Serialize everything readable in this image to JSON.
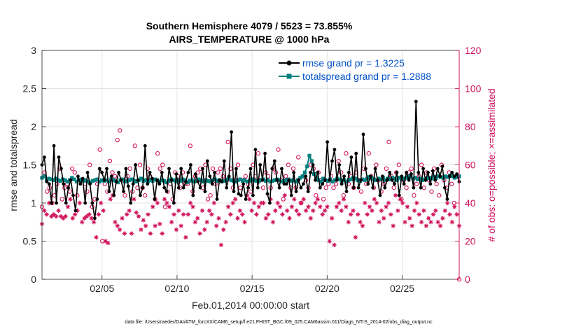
{
  "chart_data": {
    "type": "line",
    "title_line1": "Southern Hemisphere 4079 / 5523 = 73.855%",
    "title_line2": "AIRS_TEMPERATURE @ 1000 hPa",
    "xlabel": "Feb.01,2014 00:00:00 start",
    "ylabel_left": "rmse and totalspread",
    "ylabel_right": "# of obs: o=possible; ×=assimilated",
    "xlim": [
      1,
      28.8
    ],
    "ylim_left": [
      0,
      3
    ],
    "ylim_right": [
      0,
      120
    ],
    "xticks": [
      {
        "value": 5,
        "label": "02/05"
      },
      {
        "value": 10,
        "label": "02/10"
      },
      {
        "value": 15,
        "label": "02/15"
      },
      {
        "value": 20,
        "label": "02/20"
      },
      {
        "value": 25,
        "label": "02/25"
      }
    ],
    "yticks_left": [
      "0",
      "0.5",
      "1",
      "1.5",
      "2",
      "2.5",
      "3"
    ],
    "yticks_right": [
      "0",
      "20",
      "40",
      "60",
      "80",
      "100",
      "120"
    ],
    "legend": {
      "position": "top-right",
      "entries": [
        "rmse grand pr = 1.3225",
        "totalspread grand pr = 1.2888"
      ]
    },
    "colors": {
      "rmse": "#000000",
      "totalspread": "#008080",
      "obs": "#d0105a",
      "legend_text": "#0050c8"
    },
    "series": [
      {
        "name": "rmse",
        "values": [
          1.5,
          1.6,
          1.28,
          1.25,
          1.0,
          1.75,
          1.0,
          1.6,
          1.45,
          1.25,
          1.0,
          1.2,
          1.3,
          1.1,
          0.9,
          1.35,
          1.25,
          1.32,
          1.0,
          1.4,
          1.25,
          1.0,
          0.8,
          1.05,
          1.45,
          1.4,
          1.3,
          1.45,
          1.15,
          1.35,
          1.1,
          1.28,
          1.4,
          1.3,
          1.15,
          1.45,
          1.22,
          1.0,
          1.25,
          1.5,
          1.3,
          1.1,
          1.2,
          1.75,
          1.25,
          1.4,
          1.32,
          1.05,
          1.3,
          1.25,
          1.4,
          1.2,
          1.15,
          1.45,
          1.3,
          1.0,
          1.38,
          1.2,
          1.45,
          1.2,
          1.28,
          1.4,
          1.5,
          1.1,
          1.38,
          1.28,
          1.2,
          1.45,
          1.15,
          1.55,
          1.35,
          1.25,
          1.4,
          1.05,
          1.3,
          1.28,
          1.55,
          1.2,
          1.35,
          1.93,
          1.15,
          1.45,
          1.12,
          1.1,
          1.25,
          1.05,
          1.2,
          1.45,
          1.1,
          1.7,
          1.2,
          1.5,
          1.3,
          1.65,
          1.12,
          1.0,
          1.45,
          1.55,
          1.3,
          1.2,
          1.45,
          1.25,
          1.25,
          1.3,
          1.1,
          1.4,
          1.15,
          1.3,
          1.2,
          1.25,
          1.35,
          1.15,
          1.4,
          1.5,
          1.3,
          1.4,
          1.2,
          1.25,
          1.3,
          1.8,
          1.3,
          1.55,
          1.7,
          1.3,
          1.5,
          1.25,
          1.35,
          1.15,
          1.4,
          1.6,
          1.2,
          1.65,
          1.2,
          1.3,
          1.9,
          1.45,
          1.25,
          1.35,
          1.2,
          1.45,
          1.3,
          1.1,
          1.35,
          1.2,
          1.3,
          1.4,
          1.3,
          1.25,
          1.4,
          1.1,
          1.35,
          1.25,
          1.4,
          1.3,
          1.38,
          1.2,
          2.33,
          1.4,
          1.2,
          1.45,
          1.3,
          1.4,
          1.25,
          1.42,
          1.3,
          1.45,
          1.35,
          1.48,
          1.2,
          1.05,
          1.35,
          1.4,
          1.35,
          1.38,
          1.28
        ]
      },
      {
        "name": "totalspread",
        "values": [
          1.33,
          1.35,
          1.3,
          1.32,
          1.31,
          1.3,
          1.32,
          1.3,
          1.29,
          1.31,
          1.3,
          1.28,
          1.3,
          1.33,
          1.31,
          1.28,
          1.3,
          1.31,
          1.29,
          1.3,
          1.28,
          1.27,
          1.29,
          1.3,
          1.31,
          1.28,
          1.3,
          1.29,
          1.3,
          1.28,
          1.31,
          1.3,
          1.29,
          1.27,
          1.3,
          1.31,
          1.28,
          1.29,
          1.3,
          1.31,
          1.29,
          1.28,
          1.3,
          1.32,
          1.29,
          1.3,
          1.28,
          1.3,
          1.29,
          1.31,
          1.3,
          1.28,
          1.3,
          1.29,
          1.27,
          1.29,
          1.31,
          1.3,
          1.28,
          1.3,
          1.29,
          1.31,
          1.3,
          1.27,
          1.29,
          1.3,
          1.28,
          1.29,
          1.31,
          1.3,
          1.28,
          1.3,
          1.29,
          1.28,
          1.3,
          1.31,
          1.29,
          1.3,
          1.28,
          1.29,
          1.3,
          1.32,
          1.3,
          1.29,
          1.28,
          1.3,
          1.31,
          1.29,
          1.3,
          1.28,
          1.29,
          1.31,
          1.3,
          1.29,
          1.28,
          1.3,
          1.31,
          1.29,
          1.3,
          1.28,
          1.29,
          1.3,
          1.31,
          1.3,
          1.28,
          1.29,
          1.3,
          1.31,
          1.29,
          1.3,
          1.28,
          1.3,
          1.33,
          1.35,
          1.4,
          1.48,
          1.62,
          1.55,
          1.38,
          1.33,
          1.3,
          1.28,
          1.32,
          1.3,
          1.29,
          1.31,
          1.28,
          1.3,
          1.32,
          1.31,
          1.29,
          1.3,
          1.28,
          1.3,
          1.31,
          1.33,
          1.32,
          1.3,
          1.29,
          1.31,
          1.3,
          1.32,
          1.34,
          1.33,
          1.31,
          1.3,
          1.32,
          1.31,
          1.33,
          1.3,
          1.32,
          1.31,
          1.33,
          1.32,
          1.3,
          1.33,
          1.31,
          1.32,
          1.33,
          1.35,
          1.34,
          1.32,
          1.33,
          1.31,
          1.32,
          1.3,
          1.31,
          1.32,
          1.33,
          1.32,
          1.34,
          1.33,
          1.35,
          1.34,
          1.33,
          1.35,
          1.34,
          1.36,
          1.35,
          1.33,
          1.34,
          1.35
        ]
      },
      {
        "name": "possible",
        "values": [
          38,
          56,
          46,
          48,
          40,
          44,
          50,
          58,
          42,
          48,
          50,
          46,
          58,
          56,
          44,
          52,
          52,
          50,
          46,
          60,
          38,
          42,
          50,
          68,
          20,
          50,
          46,
          62,
          56,
          54,
          73,
          78,
          52,
          44,
          54,
          58,
          46,
          70,
          48,
          60,
          48,
          44,
          58,
          54,
          52,
          42,
          66,
          58,
          60,
          38,
          46,
          50,
          42,
          56,
          54,
          48,
          56,
          50,
          50,
          70,
          46,
          54,
          56,
          58,
          48,
          60,
          42,
          44,
          58,
          50,
          56,
          58,
          54,
          52,
          72,
          58,
          48,
          52,
          60,
          48,
          52,
          54,
          50,
          46,
          60,
          54,
          66,
          52,
          48,
          56,
          54,
          48,
          58,
          56,
          68,
          52,
          42,
          54,
          60,
          48,
          58,
          48,
          64,
          40,
          54,
          52,
          48,
          60,
          58,
          44,
          56,
          52,
          42,
          48,
          50,
          54,
          48,
          50,
          62,
          56,
          44,
          66,
          50,
          54,
          48,
          56,
          52,
          46,
          58,
          50,
          66,
          54,
          48,
          60,
          52,
          46,
          50,
          58,
          72,
          54,
          48,
          56,
          60,
          42,
          52,
          48,
          56,
          58,
          44,
          50,
          54,
          60,
          48,
          56,
          52,
          46,
          58,
          50,
          44,
          60,
          52,
          48,
          56,
          50,
          40,
          54,
          0
        ]
      },
      {
        "name": "assimilated",
        "values": [
          29,
          36,
          34,
          40,
          33,
          34,
          33,
          36,
          33,
          32,
          33,
          38,
          42,
          32,
          34,
          36,
          40,
          30,
          32,
          33,
          34,
          32,
          30,
          22,
          34,
          40,
          36,
          20,
          19,
          42,
          44,
          30,
          28,
          26,
          32,
          24,
          34,
          36,
          24,
          42,
          35,
          33,
          26,
          31,
          28,
          34,
          24,
          38,
          28,
          40,
          29,
          24,
          42,
          40,
          38,
          30,
          34,
          26,
          36,
          28,
          34,
          22,
          34,
          40,
          38,
          30,
          32,
          24,
          36,
          26,
          30,
          36,
          34,
          40,
          28,
          32,
          18,
          26,
          30,
          38,
          34,
          40,
          42,
          32,
          36,
          34,
          30,
          44,
          42,
          36,
          40,
          34,
          38,
          40,
          40,
          32,
          34,
          42,
          30,
          36,
          40,
          38,
          34,
          44,
          36,
          32,
          38,
          42,
          36,
          34,
          40,
          42,
          36,
          38,
          32,
          36,
          40,
          42,
          38,
          34,
          36,
          38,
          20,
          32,
          18,
          38,
          40,
          36,
          42,
          38,
          30,
          34,
          36,
          22,
          34,
          30,
          28,
          40,
          34,
          38,
          36,
          42,
          40,
          30,
          36,
          32,
          38,
          40,
          34,
          28,
          44,
          36,
          42,
          40,
          30,
          38,
          32,
          28,
          36,
          40,
          34,
          30,
          36,
          28,
          32,
          30,
          34,
          36,
          30,
          28,
          32,
          36,
          40,
          34,
          30,
          38,
          34,
          28
        ]
      }
    ],
    "footer": "data file: /Users/raeder/DAI/ATM_forcXX/CAM6_setup/f.e21.FHIST_BGC.f09_025.CAM6assim.011/Diags_NTrS_2014-02/obs_diag_output.nc"
  }
}
